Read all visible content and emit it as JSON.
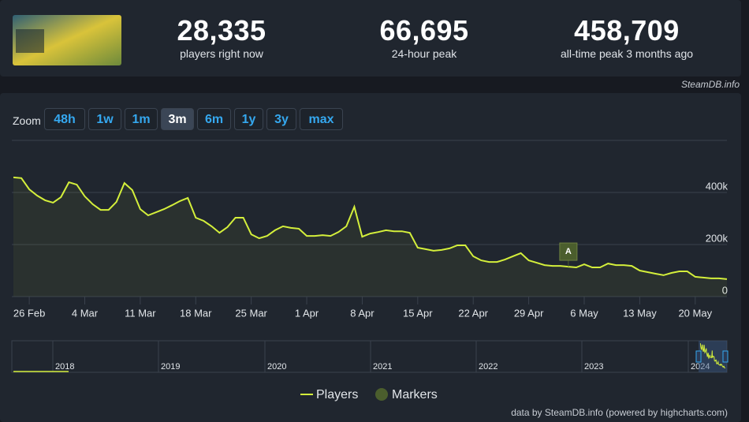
{
  "header": {
    "stats": [
      {
        "value": "28,335",
        "label": "players right now"
      },
      {
        "value": "66,695",
        "label": "24-hour peak"
      },
      {
        "value": "458,709",
        "label": "all-time peak 3 months ago"
      }
    ],
    "source": "SteamDB.info"
  },
  "zoom": {
    "label": "Zoom",
    "buttons": [
      "48h",
      "1w",
      "1m",
      "3m",
      "6m",
      "1y",
      "3y",
      "max"
    ],
    "active": "3m"
  },
  "chart_data": {
    "type": "line",
    "categories": [
      null,
      null,
      "26 Feb",
      null,
      null,
      null,
      null,
      null,
      null,
      "4 Mar",
      null,
      null,
      null,
      null,
      null,
      null,
      "11 Mar",
      null,
      null,
      null,
      null,
      null,
      null,
      "18 Mar",
      null,
      null,
      null,
      null,
      null,
      null,
      "25 Mar",
      null,
      null,
      null,
      null,
      null,
      null,
      "1 Apr",
      null,
      null,
      null,
      null,
      null,
      null,
      "8 Apr",
      null,
      null,
      null,
      null,
      null,
      null,
      "15 Apr",
      null,
      null,
      null,
      null,
      null,
      null,
      "22 Apr",
      null,
      null,
      null,
      null,
      null,
      null,
      "29 Apr",
      null,
      null,
      null,
      null,
      null,
      null,
      "6 May",
      null,
      null,
      null,
      null,
      null,
      null,
      "13 May",
      null,
      null,
      null,
      null,
      null,
      null,
      "20 May",
      null,
      null,
      null,
      null
    ],
    "series": [
      {
        "name": "Players",
        "color": "#d4ef3b",
        "values": [
          458000,
          455000,
          412000,
          388000,
          370000,
          361000,
          382000,
          439000,
          430000,
          385000,
          355000,
          333000,
          333000,
          364000,
          436000,
          409000,
          336000,
          312000,
          324000,
          336000,
          351000,
          367000,
          379000,
          303000,
          291000,
          270000,
          245000,
          267000,
          303000,
          303000,
          239000,
          224000,
          233000,
          255000,
          270000,
          264000,
          261000,
          233000,
          233000,
          236000,
          233000,
          248000,
          270000,
          345000,
          230000,
          242000,
          248000,
          255000,
          251000,
          251000,
          245000,
          188000,
          182000,
          176000,
          179000,
          185000,
          197000,
          197000,
          155000,
          139000,
          133000,
          133000,
          142000,
          155000,
          167000,
          139000,
          130000,
          121000,
          118000,
          118000,
          115000,
          112000,
          124000,
          112000,
          112000,
          127000,
          121000,
          121000,
          118000,
          100000,
          94000,
          88000,
          82000,
          91000,
          97000,
          97000,
          76000,
          73000,
          70000,
          70000,
          67000
        ]
      }
    ],
    "markers": {
      "name": "Markers",
      "color": "#4b5e2d",
      "labels": [
        "A"
      ]
    },
    "ylim": [
      0,
      600000
    ],
    "yticks": [
      0,
      {
        "value": 200000,
        "label": "200k"
      },
      {
        "value": 400000,
        "label": "400k"
      }
    ],
    "grid": true
  },
  "navigator": {
    "years": [
      "2018",
      "2019",
      "2020",
      "2021",
      "2022",
      "2023",
      "2024"
    ]
  },
  "credits": "data by SteamDB.info (powered by highcharts.com)"
}
